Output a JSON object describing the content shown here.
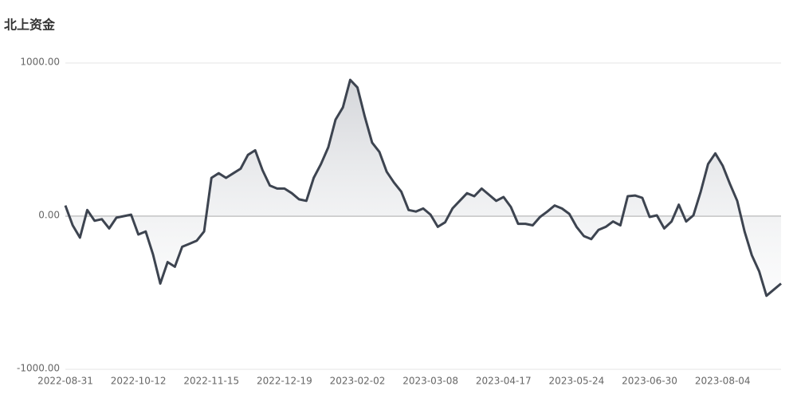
{
  "chart_data": {
    "type": "line",
    "title": "北上资金",
    "categories": [
      "2022-08-31",
      null,
      null,
      null,
      null,
      null,
      null,
      null,
      null,
      null,
      "2022-10-12",
      null,
      null,
      null,
      null,
      null,
      null,
      null,
      null,
      null,
      "2022-11-15",
      null,
      null,
      null,
      null,
      null,
      null,
      null,
      null,
      null,
      "2022-12-19",
      null,
      null,
      null,
      null,
      null,
      null,
      null,
      null,
      null,
      "2023-02-02",
      null,
      null,
      null,
      null,
      null,
      null,
      null,
      null,
      null,
      "2023-03-08",
      null,
      null,
      null,
      null,
      null,
      null,
      null,
      null,
      null,
      "2023-04-17",
      null,
      null,
      null,
      null,
      null,
      null,
      null,
      null,
      null,
      "2023-05-24",
      null,
      null,
      null,
      null,
      null,
      null,
      null,
      null,
      null,
      "2023-06-30",
      null,
      null,
      null,
      null,
      null,
      null,
      null,
      null,
      null,
      "2023-08-04",
      null,
      null,
      null,
      null,
      null,
      null,
      null,
      null
    ],
    "series": [
      {
        "name": "北上资金",
        "color": "#3d4450",
        "values": [
          70,
          -60,
          -140,
          40,
          -30,
          -20,
          -80,
          -10,
          0,
          10,
          -120,
          -100,
          -250,
          -440,
          -300,
          -330,
          -200,
          -180,
          -160,
          -100,
          250,
          280,
          250,
          280,
          310,
          400,
          430,
          300,
          200,
          180,
          180,
          150,
          110,
          100,
          250,
          340,
          450,
          630,
          710,
          890,
          840,
          650,
          480,
          420,
          290,
          220,
          160,
          40,
          30,
          50,
          10,
          -70,
          -40,
          50,
          100,
          150,
          130,
          180,
          140,
          100,
          125,
          60,
          -50,
          -50,
          -60,
          -5,
          30,
          70,
          50,
          15,
          -70,
          -130,
          -150,
          -90,
          -70,
          -35,
          -60,
          130,
          135,
          120,
          -5,
          5,
          -80,
          -35,
          75,
          -35,
          5,
          160,
          340,
          410,
          330,
          210,
          100,
          -100,
          -255,
          -360,
          -520,
          -480,
          -440
        ]
      }
    ],
    "ylim": [
      -1000,
      1000
    ],
    "yticks": [
      {
        "value": -1000,
        "label": "-1000.00"
      },
      {
        "value": 0,
        "label": "0.00"
      },
      {
        "value": 1000,
        "label": "1000.00"
      }
    ],
    "grid": true
  }
}
